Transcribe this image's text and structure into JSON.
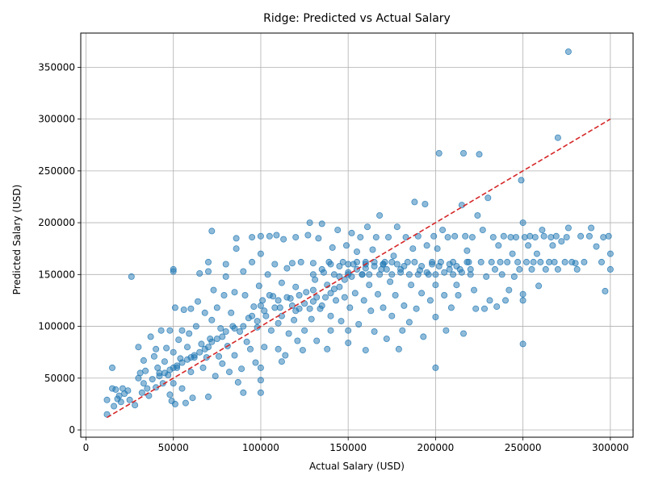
{
  "chart_data": {
    "type": "scatter",
    "title": "Ridge: Predicted vs Actual Salary",
    "xlabel": "Actual Salary (USD)",
    "ylabel": "Predicted Salary (USD)",
    "xlim": [
      -3000,
      313000
    ],
    "ylim": [
      -7000,
      383000
    ],
    "xticks": [
      0,
      50000,
      100000,
      150000,
      200000,
      250000,
      300000
    ],
    "yticks": [
      0,
      50000,
      100000,
      150000,
      200000,
      250000,
      300000,
      350000
    ],
    "xtick_labels": [
      "0",
      "50000",
      "100000",
      "150000",
      "200000",
      "250000",
      "300000"
    ],
    "ytick_labels": [
      "0",
      "50000",
      "100000",
      "150000",
      "200000",
      "250000",
      "300000",
      "350000"
    ],
    "grid": true,
    "point_color": "#1f77b4",
    "point_alpha": 0.5,
    "reference_line": {
      "x": [
        12000,
        300000
      ],
      "y": [
        12000,
        300000
      ],
      "color": "#d62728",
      "style": "dashed"
    },
    "points": [
      [
        12000,
        15000
      ],
      [
        12000,
        29000
      ],
      [
        15000,
        40000
      ],
      [
        15000,
        60000
      ],
      [
        16000,
        23000
      ],
      [
        17000,
        39000
      ],
      [
        18000,
        30000
      ],
      [
        19000,
        33000
      ],
      [
        20000,
        27000
      ],
      [
        21000,
        40000
      ],
      [
        22000,
        35000
      ],
      [
        24000,
        38000
      ],
      [
        25000,
        29000
      ],
      [
        26000,
        148000
      ],
      [
        28000,
        24000
      ],
      [
        30000,
        80000
      ],
      [
        30000,
        50000
      ],
      [
        31000,
        55000
      ],
      [
        32000,
        36000
      ],
      [
        33000,
        45000
      ],
      [
        33000,
        67000
      ],
      [
        34000,
        57000
      ],
      [
        35000,
        40000
      ],
      [
        36000,
        33000
      ],
      [
        37000,
        90000
      ],
      [
        38000,
        49000
      ],
      [
        39000,
        71000
      ],
      [
        40000,
        78000
      ],
      [
        40000,
        41000
      ],
      [
        41000,
        60000
      ],
      [
        42000,
        55000
      ],
      [
        43000,
        96000
      ],
      [
        44000,
        45000
      ],
      [
        45000,
        66000
      ],
      [
        46000,
        79000
      ],
      [
        47000,
        53000
      ],
      [
        48000,
        96000
      ],
      [
        48000,
        34000
      ],
      [
        49000,
        28000
      ],
      [
        50000,
        153000
      ],
      [
        50000,
        155000
      ],
      [
        50000,
        75000
      ],
      [
        50000,
        45000
      ],
      [
        51000,
        25000
      ],
      [
        51000,
        118000
      ],
      [
        52000,
        60000
      ],
      [
        53000,
        87000
      ],
      [
        54000,
        69000
      ],
      [
        55000,
        96000
      ],
      [
        55000,
        40000
      ],
      [
        56000,
        116000
      ],
      [
        57000,
        26000
      ],
      [
        58000,
        80000
      ],
      [
        59000,
        93000
      ],
      [
        60000,
        117000
      ],
      [
        60000,
        56000
      ],
      [
        61000,
        31000
      ],
      [
        62000,
        70000
      ],
      [
        63000,
        100000
      ],
      [
        64000,
        124000
      ],
      [
        65000,
        151000
      ],
      [
        66000,
        83000
      ],
      [
        67000,
        60000
      ],
      [
        68000,
        113000
      ],
      [
        69000,
        70000
      ],
      [
        70000,
        32000
      ],
      [
        70000,
        153000
      ],
      [
        70000,
        162000
      ],
      [
        71000,
        88000
      ],
      [
        72000,
        192000
      ],
      [
        72000,
        106000
      ],
      [
        73000,
        135000
      ],
      [
        74000,
        52000
      ],
      [
        75000,
        118000
      ],
      [
        76000,
        71000
      ],
      [
        77000,
        98000
      ],
      [
        78000,
        64000
      ],
      [
        79000,
        130000
      ],
      [
        80000,
        148000
      ],
      [
        80000,
        160000
      ],
      [
        81000,
        81000
      ],
      [
        82000,
        56000
      ],
      [
        83000,
        113000
      ],
      [
        84000,
        100000
      ],
      [
        85000,
        133000
      ],
      [
        85000,
        72000
      ],
      [
        86000,
        175000
      ],
      [
        86000,
        185000
      ],
      [
        87000,
        46000
      ],
      [
        88000,
        95000
      ],
      [
        89000,
        59000
      ],
      [
        90000,
        153000
      ],
      [
        90000,
        36000
      ],
      [
        91000,
        130000
      ],
      [
        92000,
        85000
      ],
      [
        93000,
        108000
      ],
      [
        94000,
        78000
      ],
      [
        95000,
        186000
      ],
      [
        95000,
        162000
      ],
      [
        96000,
        119000
      ],
      [
        97000,
        65000
      ],
      [
        98000,
        99000
      ],
      [
        99000,
        139000
      ],
      [
        100000,
        36000
      ],
      [
        100000,
        48000
      ],
      [
        100000,
        60000
      ],
      [
        100000,
        170000
      ],
      [
        100000,
        187000
      ],
      [
        101000,
        125000
      ],
      [
        102000,
        80000
      ],
      [
        103000,
        110000
      ],
      [
        104000,
        150000
      ],
      [
        105000,
        187000
      ],
      [
        106000,
        96000
      ],
      [
        107000,
        129000
      ],
      [
        108000,
        160000
      ],
      [
        109000,
        188000
      ],
      [
        110000,
        78000
      ],
      [
        110000,
        103000
      ],
      [
        111000,
        118000
      ],
      [
        112000,
        142000
      ],
      [
        112000,
        66000
      ],
      [
        113000,
        184000
      ],
      [
        114000,
        72000
      ],
      [
        115000,
        156000
      ],
      [
        116000,
        93000
      ],
      [
        117000,
        127000
      ],
      [
        118000,
        161000
      ],
      [
        119000,
        106000
      ],
      [
        120000,
        186000
      ],
      [
        120000,
        138000
      ],
      [
        121000,
        86000
      ],
      [
        122000,
        117000
      ],
      [
        123000,
        162000
      ],
      [
        124000,
        77000
      ],
      [
        125000,
        96000
      ],
      [
        126000,
        133000
      ],
      [
        127000,
        188000
      ],
      [
        128000,
        200000
      ],
      [
        129000,
        107000
      ],
      [
        130000,
        161000
      ],
      [
        130000,
        124000
      ],
      [
        131000,
        145000
      ],
      [
        132000,
        86000
      ],
      [
        133000,
        185000
      ],
      [
        134000,
        117000
      ],
      [
        135000,
        199000
      ],
      [
        136000,
        152000
      ],
      [
        137000,
        128000
      ],
      [
        138000,
        78000
      ],
      [
        139000,
        162000
      ],
      [
        140000,
        110000
      ],
      [
        140000,
        96000
      ],
      [
        141000,
        176000
      ],
      [
        142000,
        136000
      ],
      [
        143000,
        125000
      ],
      [
        144000,
        193000
      ],
      [
        145000,
        148000
      ],
      [
        146000,
        105000
      ],
      [
        147000,
        162000
      ],
      [
        148000,
        128000
      ],
      [
        149000,
        178000
      ],
      [
        150000,
        84000
      ],
      [
        150000,
        96000
      ],
      [
        150000,
        150000
      ],
      [
        151000,
        118000
      ],
      [
        152000,
        190000
      ],
      [
        153000,
        160000
      ],
      [
        154000,
        132000
      ],
      [
        155000,
        172000
      ],
      [
        156000,
        102000
      ],
      [
        157000,
        186000
      ],
      [
        158000,
        150000
      ],
      [
        159000,
        125000
      ],
      [
        160000,
        77000
      ],
      [
        160000,
        162000
      ],
      [
        161000,
        196000
      ],
      [
        162000,
        140000
      ],
      [
        163000,
        115000
      ],
      [
        164000,
        174000
      ],
      [
        165000,
        95000
      ],
      [
        166000,
        186000
      ],
      [
        167000,
        131000
      ],
      [
        168000,
        207000
      ],
      [
        169000,
        155000
      ],
      [
        170000,
        118000
      ],
      [
        171000,
        162000
      ],
      [
        172000,
        88000
      ],
      [
        173000,
        186000
      ],
      [
        174000,
        143000
      ],
      [
        175000,
        110000
      ],
      [
        176000,
        168000
      ],
      [
        177000,
        130000
      ],
      [
        178000,
        196000
      ],
      [
        179000,
        78000
      ],
      [
        180000,
        155000
      ],
      [
        181000,
        96000
      ],
      [
        182000,
        120000
      ],
      [
        183000,
        186000
      ],
      [
        184000,
        162000
      ],
      [
        185000,
        104000
      ],
      [
        186000,
        140000
      ],
      [
        187000,
        175000
      ],
      [
        188000,
        220000
      ],
      [
        189000,
        117000
      ],
      [
        190000,
        187000
      ],
      [
        191000,
        154000
      ],
      [
        192000,
        132000
      ],
      [
        193000,
        90000
      ],
      [
        194000,
        218000
      ],
      [
        195000,
        178000
      ],
      [
        196000,
        150000
      ],
      [
        197000,
        125000
      ],
      [
        198000,
        162000
      ],
      [
        199000,
        187000
      ],
      [
        200000,
        60000
      ],
      [
        200000,
        109000
      ],
      [
        200000,
        140000
      ],
      [
        201000,
        175000
      ],
      [
        202000,
        267000
      ],
      [
        203000,
        162000
      ],
      [
        204000,
        193000
      ],
      [
        205000,
        130000
      ],
      [
        206000,
        96000
      ],
      [
        207000,
        186000
      ],
      [
        208000,
        155000
      ],
      [
        209000,
        118000
      ],
      [
        210000,
        162000
      ],
      [
        211000,
        187000
      ],
      [
        212000,
        140000
      ],
      [
        213000,
        130000
      ],
      [
        214000,
        155000
      ],
      [
        215000,
        217000
      ],
      [
        216000,
        93000
      ],
      [
        216000,
        267000
      ],
      [
        217000,
        187000
      ],
      [
        218000,
        173000
      ],
      [
        219000,
        162000
      ],
      [
        220000,
        150000
      ],
      [
        221000,
        186000
      ],
      [
        222000,
        135000
      ],
      [
        223000,
        117000
      ],
      [
        224000,
        207000
      ],
      [
        225000,
        266000
      ],
      [
        226000,
        162000
      ],
      [
        227000,
        193000
      ],
      [
        228000,
        117000
      ],
      [
        229000,
        148000
      ],
      [
        230000,
        224000
      ],
      [
        231000,
        125000
      ],
      [
        232000,
        162000
      ],
      [
        233000,
        186000
      ],
      [
        234000,
        155000
      ],
      [
        235000,
        119000
      ],
      [
        236000,
        178000
      ],
      [
        237000,
        162000
      ],
      [
        238000,
        150000
      ],
      [
        239000,
        187000
      ],
      [
        240000,
        125000
      ],
      [
        241000,
        162000
      ],
      [
        242000,
        135000
      ],
      [
        243000,
        186000
      ],
      [
        244000,
        170000
      ],
      [
        245000,
        148000
      ],
      [
        246000,
        186000
      ],
      [
        247000,
        162000
      ],
      [
        248000,
        155000
      ],
      [
        249000,
        241000
      ],
      [
        250000,
        83000
      ],
      [
        250000,
        125000
      ],
      [
        250000,
        131000
      ],
      [
        250000,
        200000
      ],
      [
        251000,
        186000
      ],
      [
        252000,
        162000
      ],
      [
        253000,
        178000
      ],
      [
        254000,
        187000
      ],
      [
        255000,
        155000
      ],
      [
        256000,
        162000
      ],
      [
        257000,
        186000
      ],
      [
        258000,
        170000
      ],
      [
        259000,
        139000
      ],
      [
        260000,
        162000
      ],
      [
        261000,
        193000
      ],
      [
        262000,
        187000
      ],
      [
        263000,
        155000
      ],
      [
        265000,
        162000
      ],
      [
        266000,
        186000
      ],
      [
        267000,
        178000
      ],
      [
        268000,
        162000
      ],
      [
        269000,
        187000
      ],
      [
        270000,
        282000
      ],
      [
        270000,
        155000
      ],
      [
        272000,
        182000
      ],
      [
        274000,
        162000
      ],
      [
        275000,
        186000
      ],
      [
        276000,
        365000
      ],
      [
        276000,
        195000
      ],
      [
        278000,
        162000
      ],
      [
        280000,
        161000
      ],
      [
        281000,
        155000
      ],
      [
        283000,
        187000
      ],
      [
        285000,
        162000
      ],
      [
        288000,
        187000
      ],
      [
        289000,
        195000
      ],
      [
        292000,
        177000
      ],
      [
        295000,
        162000
      ],
      [
        296000,
        186000
      ],
      [
        297000,
        134000
      ],
      [
        299000,
        187000
      ],
      [
        300000,
        155000
      ],
      [
        300000,
        170000
      ],
      [
        100000,
        120000
      ],
      [
        102000,
        115000
      ],
      [
        105000,
        130000
      ],
      [
        108000,
        118000
      ],
      [
        110000,
        125000
      ],
      [
        112000,
        110000
      ],
      [
        115000,
        128000
      ],
      [
        118000,
        120000
      ],
      [
        120000,
        115000
      ],
      [
        122000,
        130000
      ],
      [
        125000,
        122000
      ],
      [
        128000,
        117000
      ],
      [
        130000,
        135000
      ],
      [
        132000,
        128000
      ],
      [
        135000,
        120000
      ],
      [
        138000,
        140000
      ],
      [
        140000,
        132000
      ],
      [
        142000,
        150000
      ],
      [
        145000,
        138000
      ],
      [
        148000,
        145000
      ],
      [
        150000,
        152000
      ],
      [
        152000,
        148000
      ],
      [
        155000,
        155000
      ],
      [
        158000,
        150000
      ],
      [
        160000,
        156000
      ],
      [
        162000,
        150000
      ],
      [
        165000,
        158000
      ],
      [
        168000,
        150000
      ],
      [
        170000,
        160000
      ],
      [
        172000,
        155000
      ],
      [
        175000,
        150000
      ],
      [
        178000,
        160000
      ],
      [
        180000,
        152000
      ],
      [
        182000,
        158000
      ],
      [
        185000,
        150000
      ],
      [
        188000,
        162000
      ],
      [
        190000,
        150000
      ],
      [
        192000,
        158000
      ],
      [
        195000,
        152000
      ],
      [
        198000,
        160000
      ],
      [
        200000,
        150000
      ],
      [
        202000,
        158000
      ],
      [
        205000,
        152000
      ],
      [
        208000,
        160000
      ],
      [
        210000,
        150000
      ],
      [
        212000,
        158000
      ],
      [
        215000,
        152000
      ],
      [
        218000,
        162000
      ],
      [
        220000,
        155000
      ],
      [
        95000,
        110000
      ],
      [
        98000,
        105000
      ],
      [
        90000,
        100000
      ],
      [
        85000,
        98000
      ],
      [
        80000,
        95000
      ],
      [
        78000,
        90000
      ],
      [
        75000,
        88000
      ],
      [
        72000,
        85000
      ],
      [
        70000,
        80000
      ],
      [
        68000,
        78000
      ],
      [
        65000,
        75000
      ],
      [
        62000,
        72000
      ],
      [
        60000,
        70000
      ],
      [
        58000,
        68000
      ],
      [
        55000,
        65000
      ],
      [
        52000,
        62000
      ],
      [
        50000,
        60000
      ],
      [
        48000,
        58000
      ],
      [
        45000,
        55000
      ],
      [
        42000,
        52000
      ],
      [
        130000,
        150000
      ],
      [
        135000,
        155000
      ],
      [
        140000,
        160000
      ],
      [
        145000,
        158000
      ],
      [
        150000,
        160000
      ],
      [
        155000,
        162000
      ],
      [
        160000,
        160000
      ],
      [
        165000,
        162000
      ],
      [
        170000,
        160000
      ],
      [
        175000,
        162000
      ]
    ]
  }
}
